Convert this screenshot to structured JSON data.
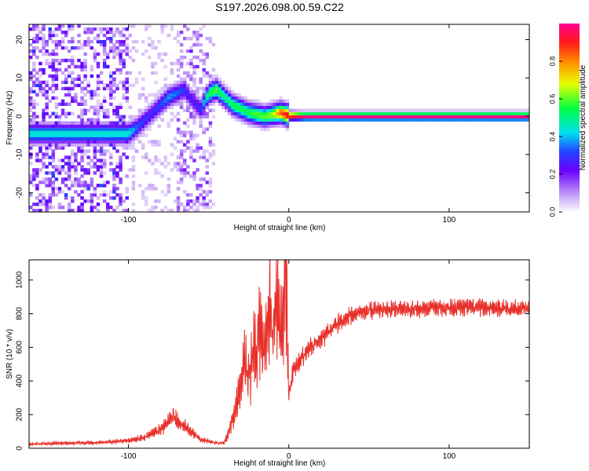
{
  "title": "S197.2026.098.00.59.C22",
  "chart_data": [
    {
      "type": "heatmap",
      "xlabel": "Height of straight line (km)",
      "ylabel": "Frequency (Hz)",
      "xlim": [
        -162,
        150
      ],
      "ylim": [
        -25,
        24
      ],
      "xticks": [
        -100,
        0,
        100
      ],
      "yticks": [
        -20,
        -10,
        0,
        10,
        20
      ],
      "colorbar": {
        "label": "Normalized spectral amplitude",
        "range": [
          0,
          1
        ],
        "ticks": [
          "0.0",
          "0.2",
          "0.4",
          "0.6",
          "0.8"
        ],
        "tick_values": [
          0,
          0.2,
          0.4,
          0.6,
          0.8
        ]
      },
      "dominant_ridge": {
        "x": [
          -100,
          -95,
          -90,
          -85,
          -80,
          -75,
          -70,
          -65,
          -60,
          -55,
          -50,
          -45,
          -40,
          -35,
          -30,
          -25,
          -20,
          -15,
          -10,
          -5,
          0,
          10,
          50,
          100,
          150
        ],
        "frequency": [
          -4.5,
          -3,
          -1,
          1,
          3,
          5,
          6,
          7,
          4,
          2,
          6,
          7,
          5,
          3,
          2,
          1,
          0.5,
          0,
          0.5,
          1,
          0.2,
          0,
          0,
          0,
          0
        ],
        "amplitude": [
          0.45,
          0.35,
          0.3,
          0.28,
          0.32,
          0.38,
          0.35,
          0.3,
          0.25,
          0.3,
          0.55,
          0.6,
          0.5,
          0.55,
          0.55,
          0.55,
          0.6,
          0.6,
          0.65,
          0.85,
          0.95,
          1,
          1,
          1,
          1
        ]
      }
    },
    {
      "type": "line",
      "xlabel": "Height of straight line (km)",
      "ylabel": "SNR (10 * v/v)",
      "xlim": [
        -162,
        150
      ],
      "ylim": [
        0,
        1120
      ],
      "xticks": [
        -100,
        0,
        100
      ],
      "yticks": [
        0,
        200,
        400,
        600,
        800,
        1000
      ],
      "series": [
        {
          "name": "SNR",
          "color": "#e8302a",
          "x": [
            -162,
            -140,
            -120,
            -100,
            -90,
            -80,
            -75,
            -72,
            -70,
            -65,
            -60,
            -55,
            -50,
            -45,
            -40,
            -38,
            -35,
            -32,
            -30,
            -28,
            -25,
            -22,
            -20,
            -18,
            -15,
            -12,
            -10,
            -8,
            -5,
            -3,
            -2,
            0,
            2,
            5,
            10,
            15,
            20,
            25,
            30,
            35,
            40,
            50,
            60,
            80,
            100,
            120,
            150
          ],
          "y": [
            25,
            30,
            32,
            45,
            65,
            110,
            150,
            200,
            160,
            130,
            90,
            50,
            40,
            30,
            35,
            80,
            180,
            280,
            400,
            520,
            420,
            600,
            520,
            760,
            560,
            900,
            640,
            960,
            620,
            860,
            1110,
            300,
            440,
            500,
            560,
            610,
            650,
            690,
            740,
            770,
            800,
            820,
            825,
            830,
            835,
            835,
            830
          ]
        }
      ]
    }
  ]
}
